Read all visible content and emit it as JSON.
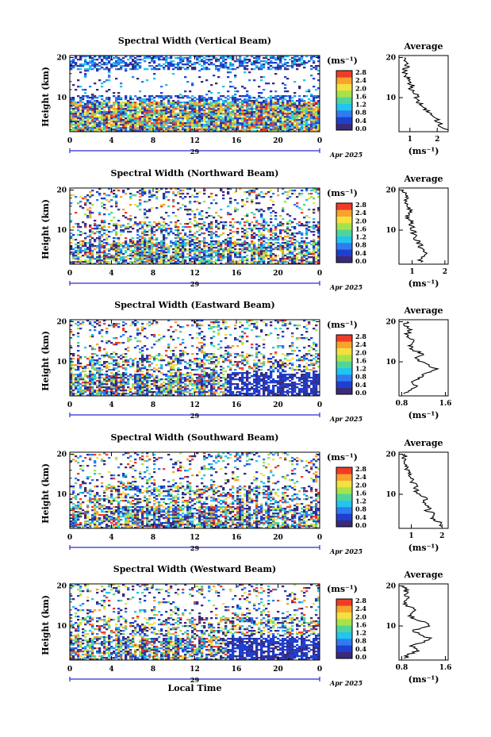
{
  "chart_data": [
    {
      "type": "heatmap",
      "title": "Spectral Width (Vertical Beam)",
      "ylabel": "Height (km)",
      "xticks": [
        "0",
        "4",
        "8",
        "12",
        "16",
        "20",
        "0"
      ],
      "yticks": [
        "20",
        "10"
      ],
      "xlim": [
        0,
        24
      ],
      "ylim": [
        1.5,
        20.5
      ],
      "date_day": "29",
      "date_month": "Apr 2025",
      "colorbar": {
        "unit": "(ms⁻¹)",
        "ticks": [
          "2.8",
          "2.4",
          "2.0",
          "1.6",
          "1.2",
          "0.8",
          "0.4",
          "0.0"
        ],
        "range": [
          0.0,
          2.8
        ]
      },
      "average": {
        "title": "Average",
        "xunit": "(ms⁻¹)",
        "xticks": [
          "1",
          "2"
        ],
        "yticks": [
          "20",
          "10"
        ],
        "xlim": [
          0.6,
          2.4
        ],
        "profile": [
          [
            2.3,
            2
          ],
          [
            2.1,
            3
          ],
          [
            2.05,
            4
          ],
          [
            1.9,
            5
          ],
          [
            1.8,
            6
          ],
          [
            1.6,
            7
          ],
          [
            1.5,
            8
          ],
          [
            1.3,
            9
          ],
          [
            1.25,
            10
          ],
          [
            1.2,
            11
          ],
          [
            1.05,
            12
          ],
          [
            1.1,
            13
          ],
          [
            0.95,
            14
          ],
          [
            0.9,
            15
          ],
          [
            0.85,
            16
          ],
          [
            0.8,
            17
          ],
          [
            0.9,
            18
          ],
          [
            0.85,
            19
          ],
          [
            0.8,
            20
          ]
        ]
      }
    },
    {
      "type": "heatmap",
      "title": "Spectral Width (Northward Beam)",
      "ylabel": "Height (km)",
      "xticks": [
        "0",
        "4",
        "8",
        "12",
        "16",
        "20",
        "0"
      ],
      "yticks": [
        "20",
        "10"
      ],
      "xlim": [
        0,
        24
      ],
      "ylim": [
        1.5,
        20.5
      ],
      "date_day": "29",
      "date_month": "Apr 2025",
      "colorbar": {
        "unit": "(ms⁻¹)",
        "ticks": [
          "2.8",
          "2.4",
          "2.0",
          "1.6",
          "1.2",
          "0.8",
          "0.4",
          "0.0"
        ],
        "range": [
          0.0,
          2.8
        ]
      },
      "average": {
        "title": "Average",
        "xunit": "(ms⁻¹)",
        "xticks": [
          "1",
          "2"
        ],
        "yticks": [
          "20",
          "10"
        ],
        "xlim": [
          0.6,
          2.1
        ],
        "profile": [
          [
            1.3,
            2
          ],
          [
            1.25,
            3
          ],
          [
            1.4,
            4
          ],
          [
            1.3,
            5
          ],
          [
            1.25,
            6
          ],
          [
            1.2,
            7
          ],
          [
            1.1,
            8
          ],
          [
            1.05,
            9
          ],
          [
            1.05,
            10
          ],
          [
            1.0,
            11
          ],
          [
            0.95,
            12
          ],
          [
            0.9,
            13
          ],
          [
            0.85,
            14
          ],
          [
            0.95,
            15
          ],
          [
            0.85,
            16
          ],
          [
            0.8,
            17
          ],
          [
            0.85,
            18
          ],
          [
            0.8,
            19
          ],
          [
            0.75,
            20
          ]
        ]
      }
    },
    {
      "type": "heatmap",
      "title": "Spectral Width (Eastward Beam)",
      "ylabel": "Height (km)",
      "xticks": [
        "0",
        "4",
        "8",
        "12",
        "16",
        "20",
        "0"
      ],
      "yticks": [
        "20",
        "10"
      ],
      "xlim": [
        0,
        24
      ],
      "ylim": [
        1.5,
        20.5
      ],
      "date_day": "29",
      "date_month": "Apr 2025",
      "colorbar": {
        "unit": "(ms⁻¹)",
        "ticks": [
          "2.8",
          "2.4",
          "2.0",
          "1.6",
          "1.2",
          "0.8",
          "0.4",
          "0.0"
        ],
        "range": [
          0.0,
          2.8
        ]
      },
      "average": {
        "title": "Average",
        "xunit": "(ms⁻¹)",
        "xticks": [
          "0.8",
          "1.6"
        ],
        "yticks": [
          "20",
          "10"
        ],
        "xlim": [
          0.75,
          1.65
        ],
        "profile": [
          [
            0.85,
            2
          ],
          [
            0.95,
            3
          ],
          [
            1.05,
            4
          ],
          [
            1.0,
            5
          ],
          [
            1.1,
            6
          ],
          [
            1.25,
            7
          ],
          [
            1.45,
            8
          ],
          [
            1.3,
            9
          ],
          [
            1.15,
            10
          ],
          [
            1.05,
            11
          ],
          [
            1.2,
            12
          ],
          [
            1.0,
            13
          ],
          [
            0.95,
            14
          ],
          [
            1.05,
            15
          ],
          [
            0.95,
            16
          ],
          [
            0.9,
            17
          ],
          [
            0.95,
            18
          ],
          [
            0.85,
            19
          ],
          [
            0.9,
            20
          ]
        ]
      }
    },
    {
      "type": "heatmap",
      "title": "Spectral Width (Southward Beam)",
      "ylabel": "Height (km)",
      "xticks": [
        "0",
        "4",
        "8",
        "12",
        "16",
        "20",
        "0"
      ],
      "yticks": [
        "20",
        "10"
      ],
      "xlim": [
        0,
        24
      ],
      "ylim": [
        1.5,
        20.5
      ],
      "date_day": "29",
      "date_month": "Apr 2025",
      "colorbar": {
        "unit": "(ms⁻¹)",
        "ticks": [
          "2.8",
          "2.4",
          "2.0",
          "1.6",
          "1.2",
          "0.8",
          "0.4",
          "0.0"
        ],
        "range": [
          0.0,
          2.8
        ]
      },
      "average": {
        "title": "Average",
        "xunit": "(ms⁻¹)",
        "xticks": [
          "1",
          "2"
        ],
        "yticks": [
          "20",
          "10"
        ],
        "xlim": [
          0.6,
          2.2
        ],
        "profile": [
          [
            2.05,
            2
          ],
          [
            1.9,
            3
          ],
          [
            1.6,
            4
          ],
          [
            1.75,
            5
          ],
          [
            1.5,
            6
          ],
          [
            1.6,
            7
          ],
          [
            1.4,
            8
          ],
          [
            1.45,
            9
          ],
          [
            1.3,
            10
          ],
          [
            1.15,
            11
          ],
          [
            1.2,
            12
          ],
          [
            1.0,
            13
          ],
          [
            1.05,
            14
          ],
          [
            0.9,
            15
          ],
          [
            0.85,
            16
          ],
          [
            0.8,
            17
          ],
          [
            0.85,
            18
          ],
          [
            0.75,
            19
          ],
          [
            0.8,
            20
          ]
        ]
      }
    },
    {
      "type": "heatmap",
      "title": "Spectral Width (Westward Beam)",
      "ylabel": "Height (km)",
      "xticks": [
        "0",
        "4",
        "8",
        "12",
        "16",
        "20",
        "0"
      ],
      "yticks": [
        "20",
        "10"
      ],
      "xlim": [
        0,
        24
      ],
      "ylim": [
        1.5,
        20.5
      ],
      "date_day": "29",
      "date_month": "Apr 2025",
      "xlabel": "Local Time",
      "colorbar": {
        "unit": "(ms⁻¹)",
        "ticks": [
          "2.8",
          "2.4",
          "2.0",
          "1.6",
          "1.2",
          "0.8",
          "0.4",
          "0.0"
        ],
        "range": [
          0.0,
          2.8
        ]
      },
      "average": {
        "title": "Average",
        "xunit": "(ms⁻¹)",
        "xticks": [
          "0.8",
          "1.6"
        ],
        "yticks": [
          "20",
          "10"
        ],
        "xlim": [
          0.75,
          1.65
        ],
        "profile": [
          [
            0.85,
            2
          ],
          [
            0.95,
            3
          ],
          [
            1.1,
            4
          ],
          [
            1.0,
            5
          ],
          [
            1.2,
            6
          ],
          [
            1.3,
            7
          ],
          [
            1.1,
            8
          ],
          [
            1.0,
            9
          ],
          [
            1.35,
            10
          ],
          [
            1.2,
            11
          ],
          [
            1.0,
            12
          ],
          [
            0.95,
            13
          ],
          [
            1.05,
            14
          ],
          [
            0.9,
            15
          ],
          [
            0.85,
            16
          ],
          [
            0.95,
            17
          ],
          [
            0.85,
            18
          ],
          [
            0.9,
            19
          ],
          [
            0.85,
            20
          ]
        ]
      }
    }
  ],
  "colors": {
    "scale": [
      "#3a2a7a",
      "#1f3fd0",
      "#2f7cf0",
      "#21c5ef",
      "#4fd59a",
      "#a6e34a",
      "#f4e040",
      "#f7a32c",
      "#ef3c26"
    ],
    "axis": "#000000",
    "date_bar": "#2b2bd6"
  }
}
